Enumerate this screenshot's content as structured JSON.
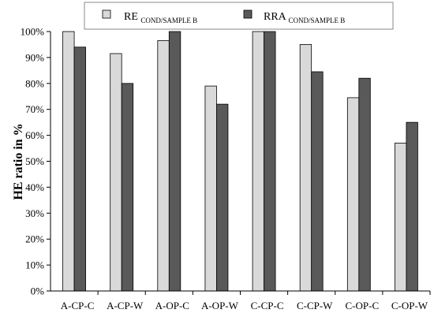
{
  "chart_data": {
    "type": "bar",
    "categories": [
      "A-CP-C",
      "A-CP-W",
      "A-OP-C",
      "A-OP-W",
      "C-CP-C",
      "C-CP-W",
      "C-OP-C",
      "C-OP-W"
    ],
    "series": [
      {
        "name": "RE",
        "name_subscript": "COND/SAMPLE B",
        "color": "#d9d9d9",
        "values": [
          100,
          91.5,
          96.5,
          79,
          100,
          95,
          74.5,
          57
        ]
      },
      {
        "name": "RRA",
        "name_subscript": "COND/SAMPLE B",
        "color": "#595959",
        "values": [
          94,
          80,
          100,
          72,
          100,
          84.5,
          82,
          65
        ]
      }
    ],
    "ylabel": "HE ratio in %",
    "xlabel": "",
    "ylim": [
      0,
      100
    ],
    "yticks": [
      "0%",
      "10%",
      "20%",
      "30%",
      "40%",
      "50%",
      "60%",
      "70%",
      "80%",
      "90%",
      "100%"
    ],
    "grid": false,
    "legend_position": "top"
  }
}
